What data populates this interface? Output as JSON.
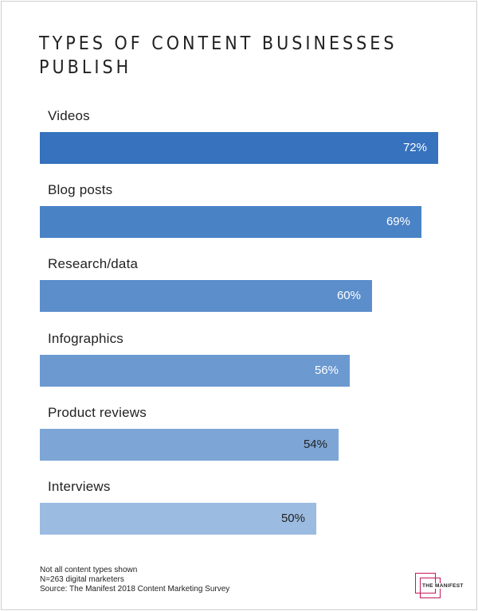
{
  "chart_data": {
    "type": "bar",
    "orientation": "horizontal",
    "title": "TYPES OF CONTENT BUSINESSES PUBLISH",
    "categories": [
      "Videos",
      "Blog posts",
      "Research/data",
      "Infographics",
      "Product reviews",
      "Interviews"
    ],
    "values": [
      72,
      69,
      60,
      56,
      54,
      50
    ],
    "value_labels": [
      "72%",
      "69%",
      "60%",
      "56%",
      "54%",
      "50%"
    ],
    "bar_colors": [
      "#3672bd",
      "#4a82c6",
      "#5b8ecb",
      "#6b99d0",
      "#7da6d6",
      "#9bbbe1"
    ],
    "label_colors": [
      "#ffffff",
      "#ffffff",
      "#ffffff",
      "#ffffff",
      "#222222",
      "#222222"
    ],
    "xlim": [
      0,
      72
    ],
    "grid": false,
    "legend": "none"
  },
  "footnotes": [
    "Not all content types shown",
    "N=263 digital marketers",
    "Source: The Manifest 2018 Content Marketing Survey"
  ],
  "logo": {
    "text": "THE MANIFEST",
    "color": "#c2185b"
  }
}
